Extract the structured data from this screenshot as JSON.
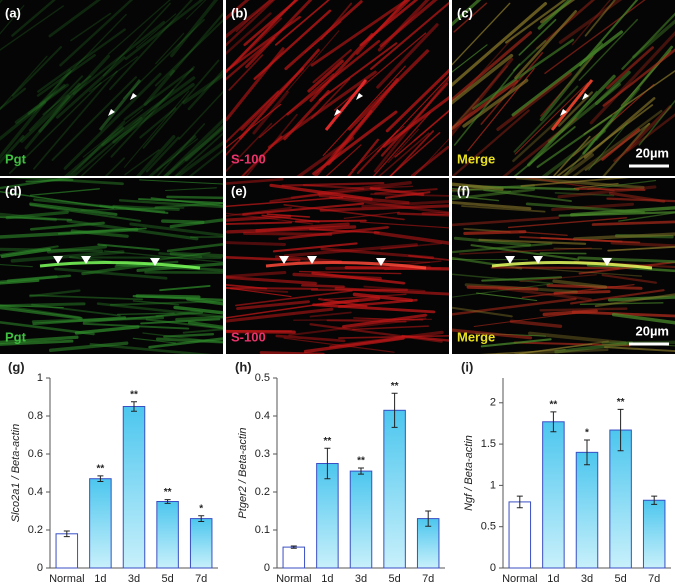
{
  "panels": [
    {
      "label": "(a)",
      "stain": "Pgt"
    },
    {
      "label": "(b)",
      "stain": "S-100"
    },
    {
      "label": "(c)",
      "stain": "Merge",
      "scale_bar": "20µm"
    },
    {
      "label": "(d)",
      "stain": "Pgt"
    },
    {
      "label": "(e)",
      "stain": "S-100"
    },
    {
      "label": "(f)",
      "stain": "Merge",
      "scale_bar": "20µm"
    }
  ],
  "chart_data": [
    {
      "type": "bar",
      "label": "(g)",
      "y_label": "Slco2a1 / Beta-actin",
      "categories": [
        "Normal",
        "1d",
        "3d",
        "5d",
        "7d"
      ],
      "values": [
        0.18,
        0.47,
        0.85,
        0.35,
        0.26
      ],
      "errors": [
        0.015,
        0.015,
        0.025,
        0.01,
        0.015
      ],
      "annotations": [
        null,
        "**",
        "**",
        "**",
        "*"
      ],
      "colors": [
        "#ffffff",
        "#7fd6f2",
        "#7fd6f2",
        "#7fd6f2",
        "#7fd6f2"
      ],
      "edge_color": "#3a4fc4",
      "ylim": [
        0,
        1
      ],
      "yticks": [
        0,
        0.2,
        0.4,
        0.6,
        0.8,
        1
      ]
    },
    {
      "type": "bar",
      "label": "(h)",
      "y_label": "Ptger2 / Beta-actin",
      "categories": [
        "Normal",
        "1d",
        "3d",
        "5d",
        "7d"
      ],
      "values": [
        0.055,
        0.275,
        0.255,
        0.415,
        0.13
      ],
      "errors": [
        0.003,
        0.04,
        0.008,
        0.045,
        0.02
      ],
      "annotations": [
        null,
        "**",
        "**",
        "**",
        null
      ],
      "colors": [
        "#ffffff",
        "#7fd6f2",
        "#7fd6f2",
        "#7fd6f2",
        "#7fd6f2"
      ],
      "edge_color": "#3a4fc4",
      "ylim": [
        0,
        0.5
      ],
      "yticks": [
        0,
        0.1,
        0.2,
        0.3,
        0.4,
        0.5
      ]
    },
    {
      "type": "bar",
      "label": "(i)",
      "y_label": "Ngf / Beta-actin",
      "categories": [
        "Normal",
        "1d",
        "3d",
        "5d",
        "7d"
      ],
      "values": [
        0.8,
        1.77,
        1.4,
        1.67,
        0.82
      ],
      "errors": [
        0.07,
        0.12,
        0.15,
        0.25,
        0.05
      ],
      "annotations": [
        null,
        "**",
        "*",
        "**",
        null
      ],
      "colors": [
        "#ffffff",
        "#7fd6f2",
        "#7fd6f2",
        "#7fd6f2",
        "#7fd6f2"
      ],
      "edge_color": "#3a4fc4",
      "ylim": [
        0,
        2.3
      ],
      "yticks": [
        0,
        0.5,
        1,
        1.5,
        2
      ]
    }
  ]
}
